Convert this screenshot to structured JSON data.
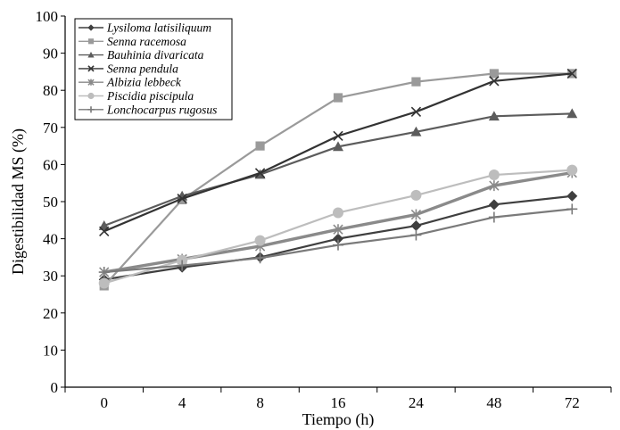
{
  "chart_data": {
    "type": "line",
    "title": "",
    "xlabel": "Tiempo (h)",
    "ylabel": "Digestibilidad MS (%)",
    "categories": [
      "0",
      "4",
      "8",
      "16",
      "24",
      "48",
      "72"
    ],
    "ylim": [
      0,
      100
    ],
    "yticks": [
      "0",
      "10",
      "20",
      "30",
      "40",
      "50",
      "60",
      "70",
      "80",
      "90",
      "100"
    ],
    "grid": false,
    "legend_position": "top-left",
    "series": [
      {
        "name": "Lysiloma latisiliquum",
        "marker": "diamond",
        "color": "#3f3f3f",
        "values": [
          29.0,
          32.3,
          35.0,
          40.0,
          43.5,
          49.2,
          51.5
        ]
      },
      {
        "name": "Senna racemosa",
        "marker": "square",
        "color": "#9a9a9a",
        "values": [
          27.3,
          50.5,
          65.0,
          78.0,
          82.3,
          84.5,
          84.5
        ]
      },
      {
        "name": "Bauhinia divaricata",
        "marker": "triangle",
        "color": "#5c5c5c",
        "values": [
          43.5,
          51.5,
          57.3,
          64.8,
          68.8,
          73.0,
          73.7
        ]
      },
      {
        "name": "Senna pendula",
        "marker": "x",
        "color": "#333333",
        "values": [
          42.0,
          50.8,
          57.7,
          67.7,
          74.2,
          82.5,
          84.5
        ]
      },
      {
        "name": "Albizia lebbeck",
        "marker": "asterisk",
        "color": "#8a8a8a",
        "values": [
          31.0,
          34.5,
          38.0,
          42.5,
          46.5,
          54.3,
          57.8
        ]
      },
      {
        "name": "Piscidia piscipula",
        "marker": "circle",
        "color": "#bdbdbd",
        "values": [
          28.0,
          34.2,
          39.5,
          47.0,
          51.7,
          57.2,
          58.5
        ]
      },
      {
        "name": "Lonchocarpus rugosus",
        "marker": "plus",
        "color": "#7a7a7a",
        "values": [
          31.0,
          32.8,
          34.8,
          38.3,
          41.0,
          45.8,
          48.0
        ]
      }
    ]
  }
}
